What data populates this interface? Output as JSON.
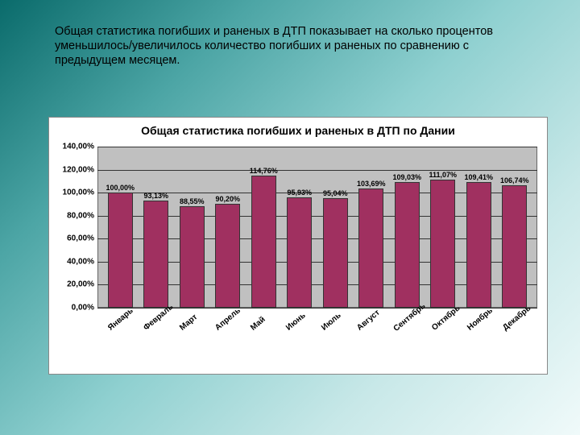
{
  "caption": "Общая статистика погибших и раненых в ДТП показывает на сколько процентов уменьшилось/увеличилось количество погибших и раненых по сравнению с предыдущем месяцем.",
  "chart": {
    "type": "bar",
    "title": "Общая статистика погибших и раненых в ДТП по Дании",
    "title_fontsize": 14,
    "categories": [
      "Январь",
      "Февраль",
      "Март",
      "Апрель",
      "Май",
      "Июнь",
      "Июль",
      "Август",
      "Сентябрь",
      "Октябрь",
      "Ноябрь",
      "Декабрь"
    ],
    "values": [
      100.0,
      93.13,
      88.55,
      90.2,
      114.76,
      95.93,
      95.04,
      103.69,
      109.03,
      111.07,
      109.41,
      106.74
    ],
    "value_labels": [
      "100,00%",
      "93,13%",
      "88,55%",
      "90,20%",
      "114,76%",
      "95,93%",
      "95,04%",
      "103,69%",
      "109,03%",
      "111,07%",
      "109,41%",
      "106,74%"
    ],
    "bar_color": "#a03060",
    "bar_border_color": "#333333",
    "plot_bg": "#c0c0c0",
    "grid_color": "#333333",
    "chart_bg": "#ffffff",
    "ylim": [
      0,
      140
    ],
    "ytick_step": 20,
    "yticks": [
      0,
      20,
      40,
      60,
      80,
      100,
      120,
      140
    ],
    "ytick_labels": [
      "0,00%",
      "20,00%",
      "40,00%",
      "60,00%",
      "80,00%",
      "100,00%",
      "120,00%",
      "140,00%"
    ],
    "label_fontsize": 10,
    "value_label_fontsize": 9,
    "xlabel_rotation": -40,
    "bar_width": 0.7
  },
  "slide_gradient": [
    "#0a6b6b",
    "#4ca5a5",
    "#8fd0d0",
    "#c8e8e8",
    "#f0fafa"
  ]
}
